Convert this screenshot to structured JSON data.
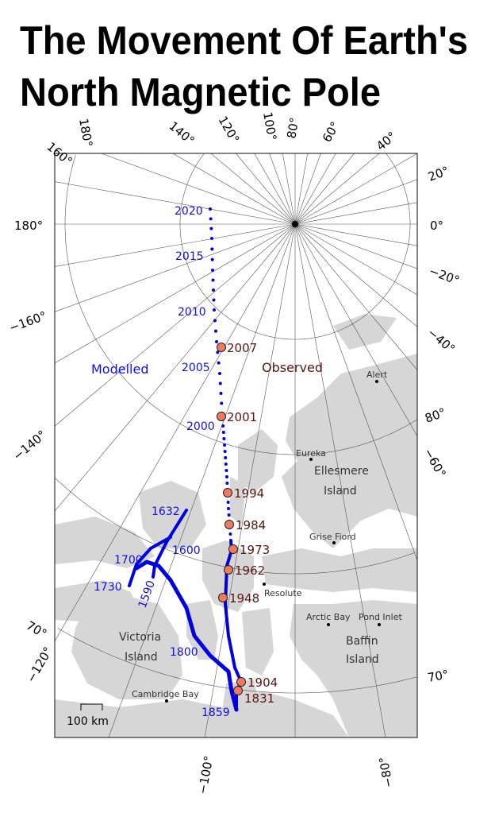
{
  "title": {
    "line1": "The Movement Of Earth's",
    "line2": "North Magnetic Pole"
  },
  "longitude_labels": {
    "top": [
      "180°",
      "160°",
      "140°",
      "120°",
      "100°",
      "80°",
      "60°",
      "40°"
    ],
    "right": [
      "20°",
      "0°",
      "−20°",
      "−40°",
      "−60°"
    ],
    "left": [
      "180°",
      "−160°",
      "−140°",
      "−120°"
    ],
    "bottom": [
      "−100°",
      "−80°"
    ]
  },
  "latitude_labels": {
    "left": [
      "70°"
    ],
    "right": [
      "80°",
      "70°"
    ]
  },
  "legend": {
    "modelled": "Modelled",
    "observed": "Observed"
  },
  "colors": {
    "modelled": "#0000e0",
    "observed_fill": "#f07a60",
    "observed_text": "#5a1414",
    "land": "#d6d6d6"
  },
  "modelled_labels": [
    "2020",
    "2015",
    "2010",
    "2005",
    "2000",
    "1632",
    "1600",
    "1700",
    "1730",
    "1590",
    "1800",
    "1859"
  ],
  "observed_years": [
    "2007",
    "2001",
    "1994",
    "1984",
    "1973",
    "1962",
    "1948",
    "1904",
    "1831"
  ],
  "places": {
    "alert": "Alert",
    "eureka": "Eureka",
    "ellesmere1": "Ellesmere",
    "ellesmere2": "Island",
    "grise_fiord": "Grise Fiord",
    "resolute": "Resolute",
    "arctic_bay": "Arctic Bay",
    "pond_inlet": "Pond Inlet",
    "baffin1": "Baffin",
    "baffin2": "Island",
    "victoria1": "Victoria",
    "victoria2": "Island",
    "cambridge_bay": "Cambridge Bay"
  },
  "scale_bar": "100 km"
}
